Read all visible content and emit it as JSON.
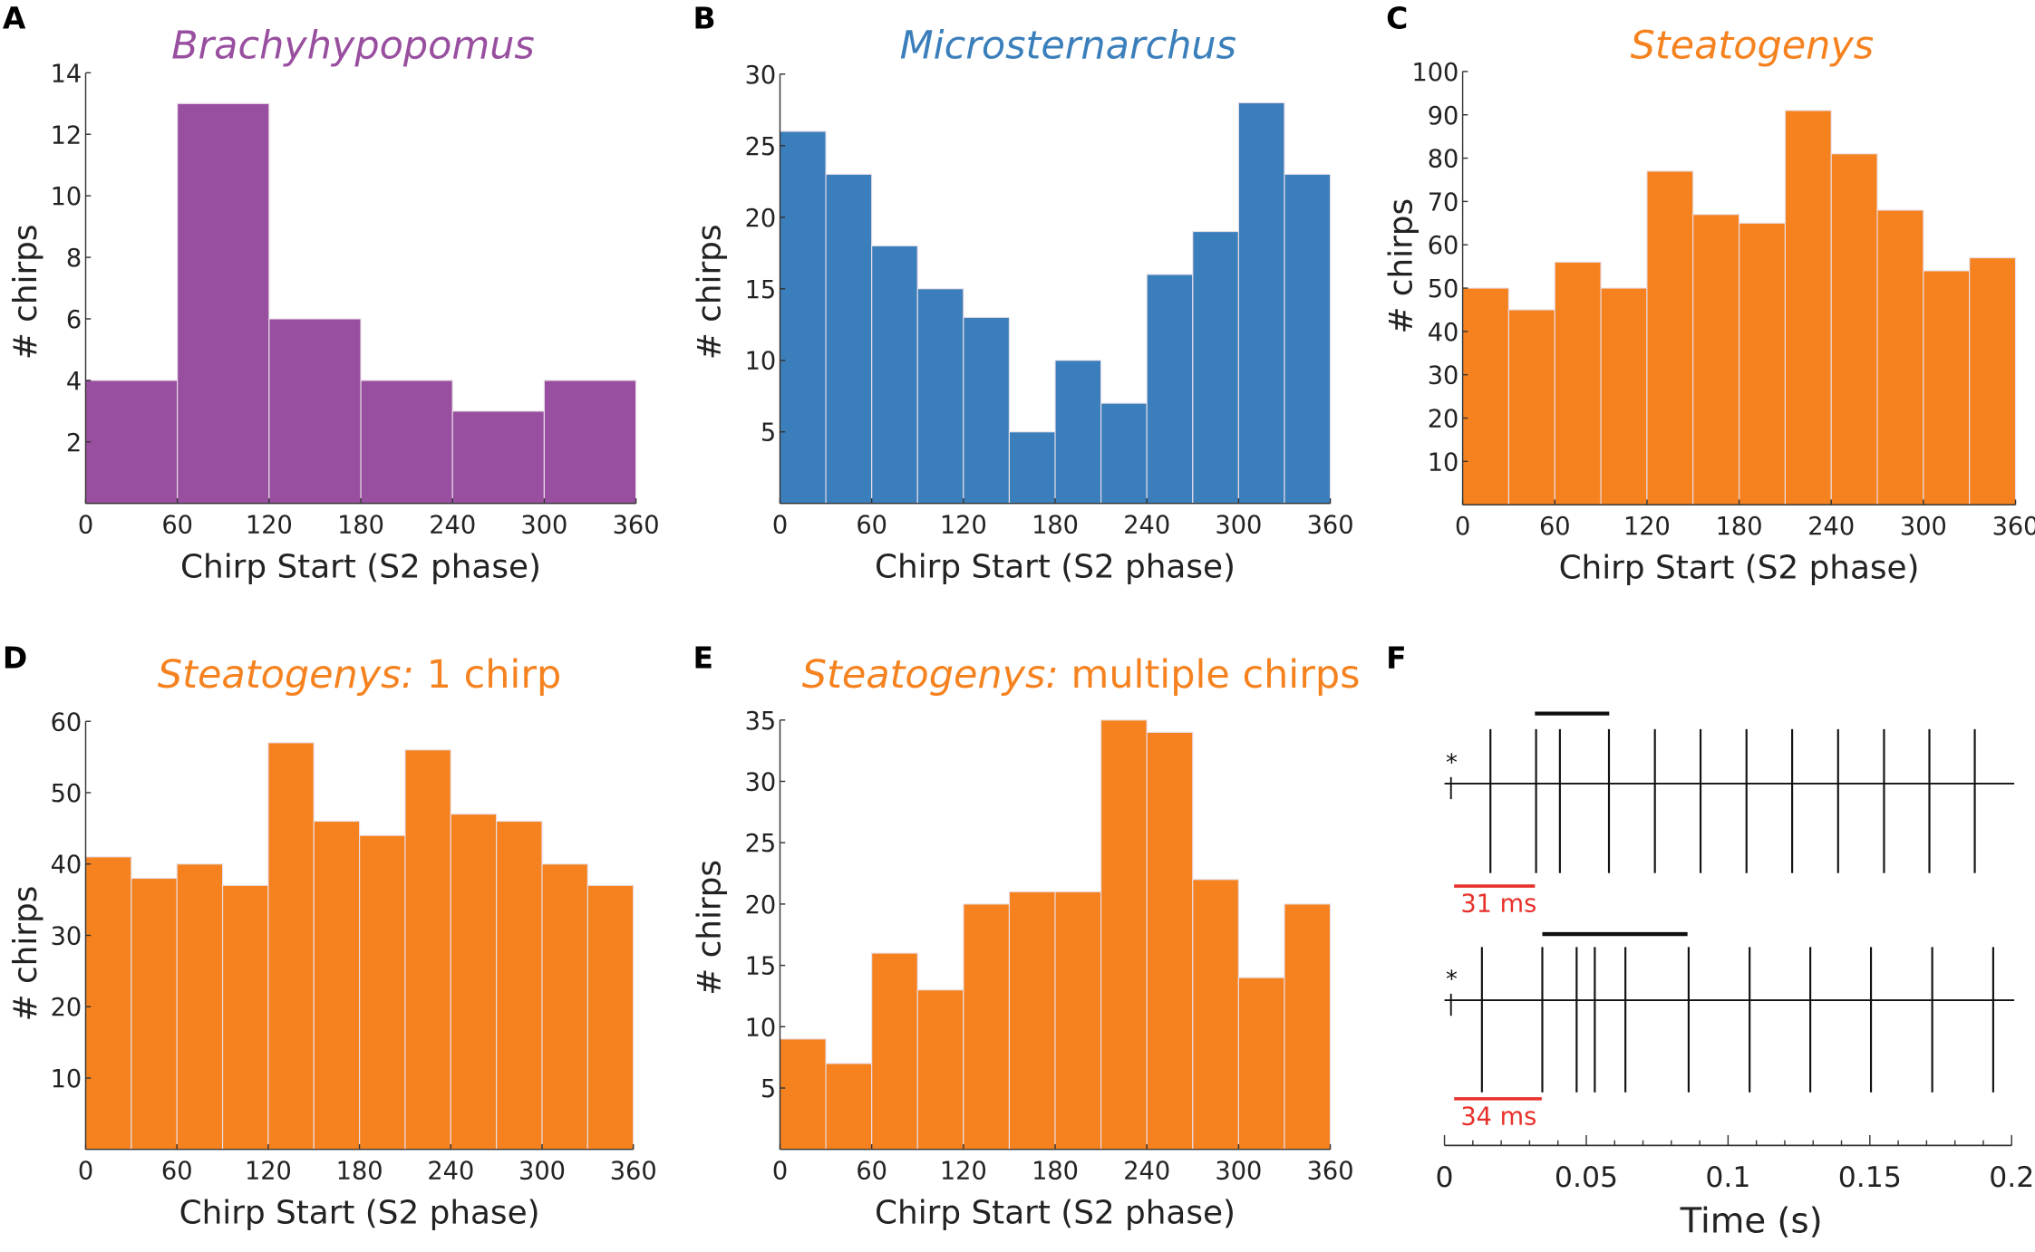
{
  "colors": {
    "purple": "#994f9f",
    "blue": "#3a7fbb",
    "orange": "#f5821f",
    "red": "#e8312a",
    "trace": "#111111"
  },
  "chart_data": [
    {
      "panel": "A",
      "type": "bar",
      "title_italic": "Brachyhypopomus",
      "title_rest": "",
      "color": "#994f9f",
      "xlabel": "Chirp Start (S2 phase)",
      "ylabel": "# chirps",
      "xlim": [
        0,
        360
      ],
      "ylim": [
        0,
        14
      ],
      "xticks": [
        0,
        60,
        120,
        180,
        240,
        300,
        360
      ],
      "yticks": [
        2,
        4,
        6,
        8,
        10,
        12,
        14
      ],
      "bin_width": 60,
      "values": [
        4,
        13,
        6,
        4,
        3,
        4
      ]
    },
    {
      "panel": "B",
      "type": "bar",
      "title_italic": "Microsternarchus",
      "title_rest": "",
      "color": "#3a7fbb",
      "xlabel": "Chirp Start (S2 phase)",
      "ylabel": "# chirps",
      "xlim": [
        0,
        360
      ],
      "ylim": [
        0,
        30
      ],
      "xticks": [
        0,
        60,
        120,
        180,
        240,
        300,
        360
      ],
      "yticks": [
        5,
        10,
        15,
        20,
        25,
        30
      ],
      "bin_width": 30,
      "values": [
        26,
        23,
        18,
        15,
        13,
        5,
        10,
        7,
        16,
        19,
        28,
        23
      ]
    },
    {
      "panel": "C",
      "type": "bar",
      "title_italic": "Steatogenys",
      "title_rest": "",
      "color": "#f5821f",
      "xlabel": "Chirp Start (S2 phase)",
      "ylabel": "# chirps",
      "xlim": [
        0,
        360
      ],
      "ylim": [
        0,
        100
      ],
      "xticks": [
        0,
        60,
        120,
        180,
        240,
        300,
        360
      ],
      "yticks": [
        10,
        20,
        30,
        40,
        50,
        60,
        70,
        80,
        90,
        100
      ],
      "bin_width": 30,
      "values": [
        50,
        45,
        56,
        50,
        77,
        67,
        65,
        91,
        81,
        68,
        54,
        57
      ]
    },
    {
      "panel": "D",
      "type": "bar",
      "title_italic": "Steatogenys:",
      "title_rest": " 1 chirp",
      "color": "#f5821f",
      "xlabel": "Chirp Start (S2 phase)",
      "ylabel": "# chirps",
      "xlim": [
        0,
        360
      ],
      "ylim": [
        0,
        60
      ],
      "xticks": [
        0,
        60,
        120,
        180,
        240,
        300,
        360
      ],
      "yticks": [
        10,
        20,
        30,
        40,
        50,
        60
      ],
      "bin_width": 30,
      "values": [
        41,
        38,
        40,
        37,
        57,
        46,
        44,
        56,
        47,
        46,
        40,
        37
      ]
    },
    {
      "panel": "E",
      "type": "bar",
      "title_italic": "Steatogenys:",
      "title_rest": " multiple chirps",
      "color": "#f5821f",
      "xlabel": "Chirp Start (S2 phase)",
      "ylabel": "# chirps",
      "xlim": [
        0,
        360
      ],
      "ylim": [
        0,
        35
      ],
      "xticks": [
        0,
        60,
        120,
        180,
        240,
        300,
        360
      ],
      "yticks": [
        5,
        10,
        15,
        20,
        25,
        30,
        35
      ],
      "bin_width": 30,
      "values": [
        9,
        7,
        16,
        13,
        20,
        21,
        21,
        35,
        34,
        22,
        14,
        20
      ]
    },
    {
      "panel": "F",
      "type": "line",
      "xlabel": "Time (s)",
      "xlim": [
        0,
        0.2
      ],
      "xticks": [
        0,
        0.05,
        0.1,
        0.15,
        0.2
      ],
      "xtick_labels": [
        "0",
        "0.05",
        "0.1",
        "0.15",
        "0.2"
      ],
      "traces": [
        {
          "marker": "*",
          "spike_times": [
            0.0162,
            0.0323,
            0.0407,
            0.058,
            0.0742,
            0.0903,
            0.1065,
            0.1226,
            0.1388,
            0.155,
            0.171,
            0.187
          ],
          "chirp_bar": [
            0.0319,
            0.0581
          ],
          "scale_bar": [
            0.0034,
            0.0319
          ],
          "scale_label": "31 ms"
        },
        {
          "marker": "*",
          "spike_times": [
            0.0132,
            0.0345,
            0.0466,
            0.053,
            0.0638,
            0.0861,
            0.1076,
            0.129,
            0.1504,
            0.172,
            0.1935
          ],
          "chirp_bar": [
            0.0345,
            0.0857
          ],
          "scale_bar": [
            0.0034,
            0.0343
          ],
          "scale_label": "34 ms"
        }
      ]
    }
  ]
}
